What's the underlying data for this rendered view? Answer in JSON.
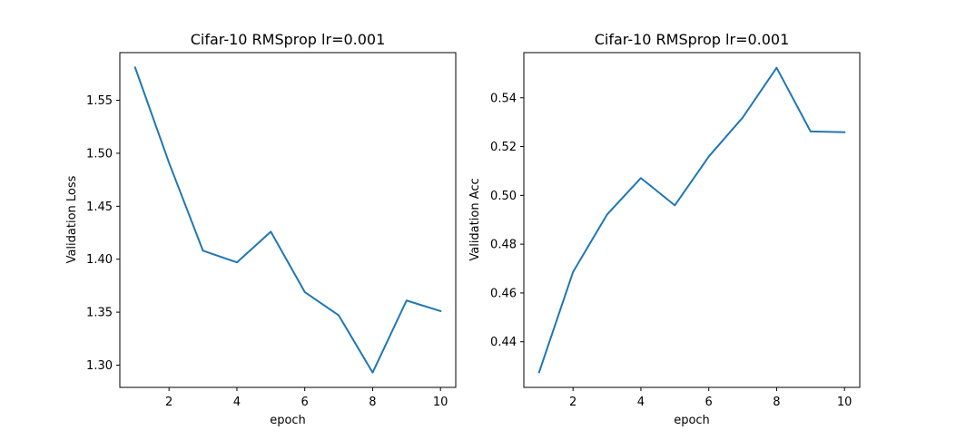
{
  "chart_data": [
    {
      "type": "line",
      "title": "Cifar-10 RMSprop lr=0.001",
      "xlabel": "epoch",
      "ylabel": "Validation Loss",
      "x": [
        1,
        2,
        3,
        4,
        5,
        6,
        7,
        8,
        9,
        10
      ],
      "series": [
        {
          "values": [
            1.581,
            1.491,
            1.408,
            1.397,
            1.426,
            1.369,
            1.347,
            1.293,
            1.361,
            1.351
          ],
          "color": "#1f77b4"
        }
      ],
      "xlim": [
        0.55,
        10.45
      ],
      "ylim": [
        1.279,
        1.595
      ],
      "xticks": [
        2,
        4,
        6,
        8,
        10
      ],
      "xtick_labels": [
        "2",
        "4",
        "6",
        "8",
        "10"
      ],
      "yticks": [
        1.3,
        1.35,
        1.4,
        1.45,
        1.5,
        1.55
      ],
      "ytick_labels": [
        "1.30",
        "1.35",
        "1.40",
        "1.45",
        "1.50",
        "1.55"
      ],
      "grid": false,
      "legend": "none"
    },
    {
      "type": "line",
      "title": "Cifar-10 RMSprop lr=0.001",
      "xlabel": "epoch",
      "ylabel": "Validation Acc",
      "x": [
        1,
        2,
        3,
        4,
        5,
        6,
        7,
        8,
        9,
        10
      ],
      "series": [
        {
          "values": [
            0.4275,
            0.4686,
            0.4921,
            0.5071,
            0.4959,
            0.5159,
            0.5319,
            0.5523,
            0.5262,
            0.5259
          ],
          "color": "#1f77b4"
        }
      ],
      "xlim": [
        0.55,
        10.45
      ],
      "ylim": [
        0.4213,
        0.5585
      ],
      "xticks": [
        2,
        4,
        6,
        8,
        10
      ],
      "xtick_labels": [
        "2",
        "4",
        "6",
        "8",
        "10"
      ],
      "yticks": [
        0.44,
        0.46,
        0.48,
        0.5,
        0.52,
        0.54
      ],
      "ytick_labels": [
        "0.44",
        "0.46",
        "0.48",
        "0.50",
        "0.52",
        "0.54"
      ],
      "grid": false,
      "legend": "none"
    }
  ]
}
